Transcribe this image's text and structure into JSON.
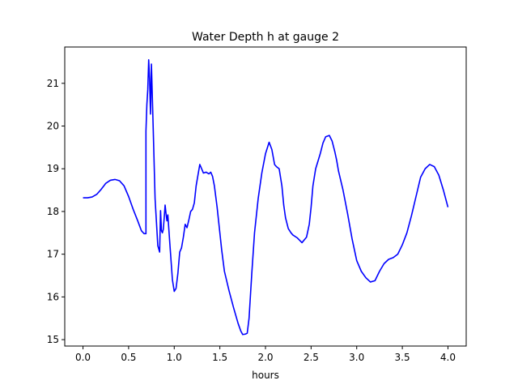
{
  "chart_data": {
    "type": "line",
    "title": "Water Depth h at gauge 2",
    "xlabel": "hours",
    "ylabel": "",
    "xlim": [
      -0.2,
      4.2
    ],
    "ylim": [
      14.85,
      21.85
    ],
    "xticks": [
      0.0,
      0.5,
      1.0,
      1.5,
      2.0,
      2.5,
      3.0,
      3.5,
      4.0
    ],
    "xtick_labels": [
      "0.0",
      "0.5",
      "1.0",
      "1.5",
      "2.0",
      "2.5",
      "3.0",
      "3.5",
      "4.0"
    ],
    "yticks": [
      15,
      16,
      17,
      18,
      19,
      20,
      21
    ],
    "ytick_labels": [
      "15",
      "16",
      "17",
      "18",
      "19",
      "20",
      "21"
    ],
    "grid": false,
    "legend": "none",
    "series": [
      {
        "color": "#0000ff",
        "x": [
          0.0,
          0.05,
          0.1,
          0.15,
          0.2,
          0.25,
          0.3,
          0.35,
          0.4,
          0.45,
          0.5,
          0.55,
          0.6,
          0.64,
          0.67,
          0.69,
          0.69,
          0.7,
          0.71,
          0.72,
          0.73,
          0.74,
          0.75,
          0.77,
          0.79,
          0.82,
          0.84,
          0.85,
          0.86,
          0.87,
          0.88,
          0.89,
          0.9,
          0.91,
          0.92,
          0.93,
          0.95,
          0.98,
          1.0,
          1.02,
          1.04,
          1.06,
          1.08,
          1.1,
          1.12,
          1.14,
          1.16,
          1.18,
          1.2,
          1.22,
          1.24,
          1.26,
          1.28,
          1.3,
          1.32,
          1.35,
          1.38,
          1.4,
          1.42,
          1.44,
          1.47,
          1.5,
          1.52,
          1.55,
          1.6,
          1.65,
          1.7,
          1.73,
          1.75,
          1.78,
          1.8,
          1.82,
          1.85,
          1.88,
          1.92,
          1.96,
          2.0,
          2.04,
          2.07,
          2.1,
          2.12,
          2.15,
          2.18,
          2.2,
          2.22,
          2.25,
          2.28,
          2.3,
          2.35,
          2.4,
          2.45,
          2.48,
          2.5,
          2.52,
          2.55,
          2.6,
          2.63,
          2.66,
          2.7,
          2.73,
          2.76,
          2.78,
          2.8,
          2.85,
          2.9,
          2.95,
          3.0,
          3.05,
          3.1,
          3.15,
          3.2,
          3.25,
          3.3,
          3.35,
          3.4,
          3.45,
          3.5,
          3.55,
          3.6,
          3.65,
          3.7,
          3.75,
          3.8,
          3.85,
          3.9,
          3.95,
          4.0
        ],
        "y": [
          18.32,
          18.32,
          18.34,
          18.4,
          18.52,
          18.66,
          18.73,
          18.75,
          18.72,
          18.6,
          18.35,
          18.05,
          17.78,
          17.55,
          17.48,
          17.48,
          19.88,
          20.5,
          20.85,
          21.55,
          21.1,
          20.28,
          21.45,
          19.9,
          18.3,
          17.2,
          17.05,
          18.02,
          17.55,
          17.5,
          17.58,
          17.85,
          18.15,
          17.95,
          17.78,
          17.92,
          17.3,
          16.4,
          16.13,
          16.2,
          16.55,
          17.05,
          17.15,
          17.4,
          17.7,
          17.62,
          17.8,
          18.0,
          18.05,
          18.2,
          18.6,
          18.85,
          19.1,
          19.0,
          18.9,
          18.92,
          18.88,
          18.92,
          18.82,
          18.6,
          18.1,
          17.5,
          17.1,
          16.6,
          16.15,
          15.75,
          15.38,
          15.2,
          15.12,
          15.13,
          15.15,
          15.5,
          16.55,
          17.5,
          18.3,
          18.9,
          19.35,
          19.62,
          19.45,
          19.1,
          19.05,
          19.0,
          18.6,
          18.15,
          17.85,
          17.6,
          17.5,
          17.45,
          17.38,
          17.27,
          17.4,
          17.7,
          18.1,
          18.6,
          19.0,
          19.35,
          19.6,
          19.75,
          19.78,
          19.65,
          19.4,
          19.2,
          18.95,
          18.5,
          17.95,
          17.35,
          16.85,
          16.6,
          16.45,
          16.35,
          16.38,
          16.6,
          16.78,
          16.88,
          16.92,
          17.0,
          17.22,
          17.5,
          17.9,
          18.35,
          18.8,
          19.0,
          19.1,
          19.05,
          18.85,
          18.5,
          18.1
        ]
      }
    ]
  }
}
